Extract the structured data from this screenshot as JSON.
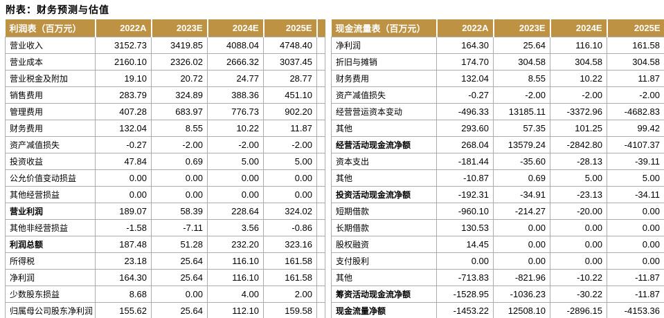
{
  "page_title": "附表：财务预测与估值",
  "colors": {
    "header_bg": "#BE9243",
    "header_text": "#FFFFFF",
    "grid": "#ABABAB",
    "text": "#000000",
    "title": "#000000"
  },
  "tables": [
    {
      "name": "income-statement",
      "header_label": "利润表（百万元）",
      "columns": [
        "2022A",
        "2023E",
        "2024E",
        "2025E"
      ],
      "rows": [
        {
          "label": "营业收入",
          "values": [
            "3152.73",
            "3419.85",
            "4088.04",
            "4748.40"
          ],
          "bold": false
        },
        {
          "label": "营业成本",
          "values": [
            "2160.10",
            "2326.02",
            "2666.32",
            "3037.45"
          ],
          "bold": false
        },
        {
          "label": "营业税金及附加",
          "values": [
            "19.10",
            "20.72",
            "24.77",
            "28.77"
          ],
          "bold": false
        },
        {
          "label": "销售费用",
          "values": [
            "283.79",
            "324.89",
            "388.36",
            "451.10"
          ],
          "bold": false
        },
        {
          "label": "管理费用",
          "values": [
            "407.28",
            "683.97",
            "776.73",
            "902.20"
          ],
          "bold": false
        },
        {
          "label": "财务费用",
          "values": [
            "132.04",
            "8.55",
            "10.22",
            "11.87"
          ],
          "bold": false
        },
        {
          "label": "资产减值损失",
          "values": [
            "-0.27",
            "-2.00",
            "-2.00",
            "-2.00"
          ],
          "bold": false
        },
        {
          "label": "投资收益",
          "values": [
            "47.84",
            "0.69",
            "5.00",
            "5.00"
          ],
          "bold": false
        },
        {
          "label": "公允价值变动损益",
          "values": [
            "0.00",
            "0.00",
            "0.00",
            "0.00"
          ],
          "bold": false
        },
        {
          "label": "其他经营损益",
          "values": [
            "0.00",
            "0.00",
            "0.00",
            "0.00"
          ],
          "bold": false
        },
        {
          "label": "营业利润",
          "values": [
            "189.07",
            "58.39",
            "228.64",
            "324.02"
          ],
          "bold": true
        },
        {
          "label": "其他非经营损益",
          "values": [
            "-1.58",
            "-7.11",
            "3.56",
            "-0.86"
          ],
          "bold": false
        },
        {
          "label": "利润总额",
          "values": [
            "187.48",
            "51.28",
            "232.20",
            "323.16"
          ],
          "bold": true
        },
        {
          "label": "所得税",
          "values": [
            "23.18",
            "25.64",
            "116.10",
            "161.58"
          ],
          "bold": false
        },
        {
          "label": "净利润",
          "values": [
            "164.30",
            "25.64",
            "116.10",
            "161.58"
          ],
          "bold": false
        },
        {
          "label": "少数股东损益",
          "values": [
            "8.68",
            "0.00",
            "4.00",
            "2.00"
          ],
          "bold": false
        },
        {
          "label": "归属母公司股东净利润",
          "values": [
            "155.62",
            "25.64",
            "112.10",
            "159.58"
          ],
          "bold": false
        }
      ]
    },
    {
      "name": "cash-flow-statement",
      "header_label": "现金流量表（百万元）",
      "columns": [
        "2022A",
        "2023E",
        "2024E",
        "2025E"
      ],
      "rows": [
        {
          "label": "净利润",
          "values": [
            "164.30",
            "25.64",
            "116.10",
            "161.58"
          ],
          "bold": false
        },
        {
          "label": "折旧与摊销",
          "values": [
            "174.70",
            "304.58",
            "304.58",
            "304.58"
          ],
          "bold": false
        },
        {
          "label": "财务费用",
          "values": [
            "132.04",
            "8.55",
            "10.22",
            "11.87"
          ],
          "bold": false
        },
        {
          "label": "资产减值损失",
          "values": [
            "-0.27",
            "-2.00",
            "-2.00",
            "-2.00"
          ],
          "bold": false
        },
        {
          "label": "经营营运资本变动",
          "values": [
            "-496.33",
            "13185.11",
            "-3372.96",
            "-4682.83"
          ],
          "bold": false
        },
        {
          "label": "其他",
          "values": [
            "293.60",
            "57.35",
            "101.25",
            "99.42"
          ],
          "bold": false
        },
        {
          "label": "经营活动现金流净额",
          "values": [
            "268.04",
            "13579.24",
            "-2842.80",
            "-4107.37"
          ],
          "bold": true
        },
        {
          "label": "资本支出",
          "values": [
            "-181.44",
            "-35.60",
            "-28.13",
            "-39.11"
          ],
          "bold": false
        },
        {
          "label": "其他",
          "values": [
            "-10.87",
            "0.69",
            "5.00",
            "5.00"
          ],
          "bold": false
        },
        {
          "label": "投资活动现金流净额",
          "values": [
            "-192.31",
            "-34.91",
            "-23.13",
            "-34.11"
          ],
          "bold": true
        },
        {
          "label": "短期借款",
          "values": [
            "-960.10",
            "-214.27",
            "-20.00",
            "0.00"
          ],
          "bold": false
        },
        {
          "label": "长期借款",
          "values": [
            "130.53",
            "0.00",
            "0.00",
            "0.00"
          ],
          "bold": false
        },
        {
          "label": "股权融资",
          "values": [
            "14.45",
            "0.00",
            "0.00",
            "0.00"
          ],
          "bold": false
        },
        {
          "label": "支付股利",
          "values": [
            "0.00",
            "0.00",
            "0.00",
            "0.00"
          ],
          "bold": false
        },
        {
          "label": "其他",
          "values": [
            "-713.83",
            "-821.96",
            "-10.22",
            "-11.87"
          ],
          "bold": false
        },
        {
          "label": "筹资活动现金流净额",
          "values": [
            "-1528.95",
            "-1036.23",
            "-30.22",
            "-11.87"
          ],
          "bold": true
        },
        {
          "label": "现金流量净额",
          "values": [
            "-1453.22",
            "12508.10",
            "-2896.15",
            "-4153.36"
          ],
          "bold": true
        }
      ]
    }
  ]
}
